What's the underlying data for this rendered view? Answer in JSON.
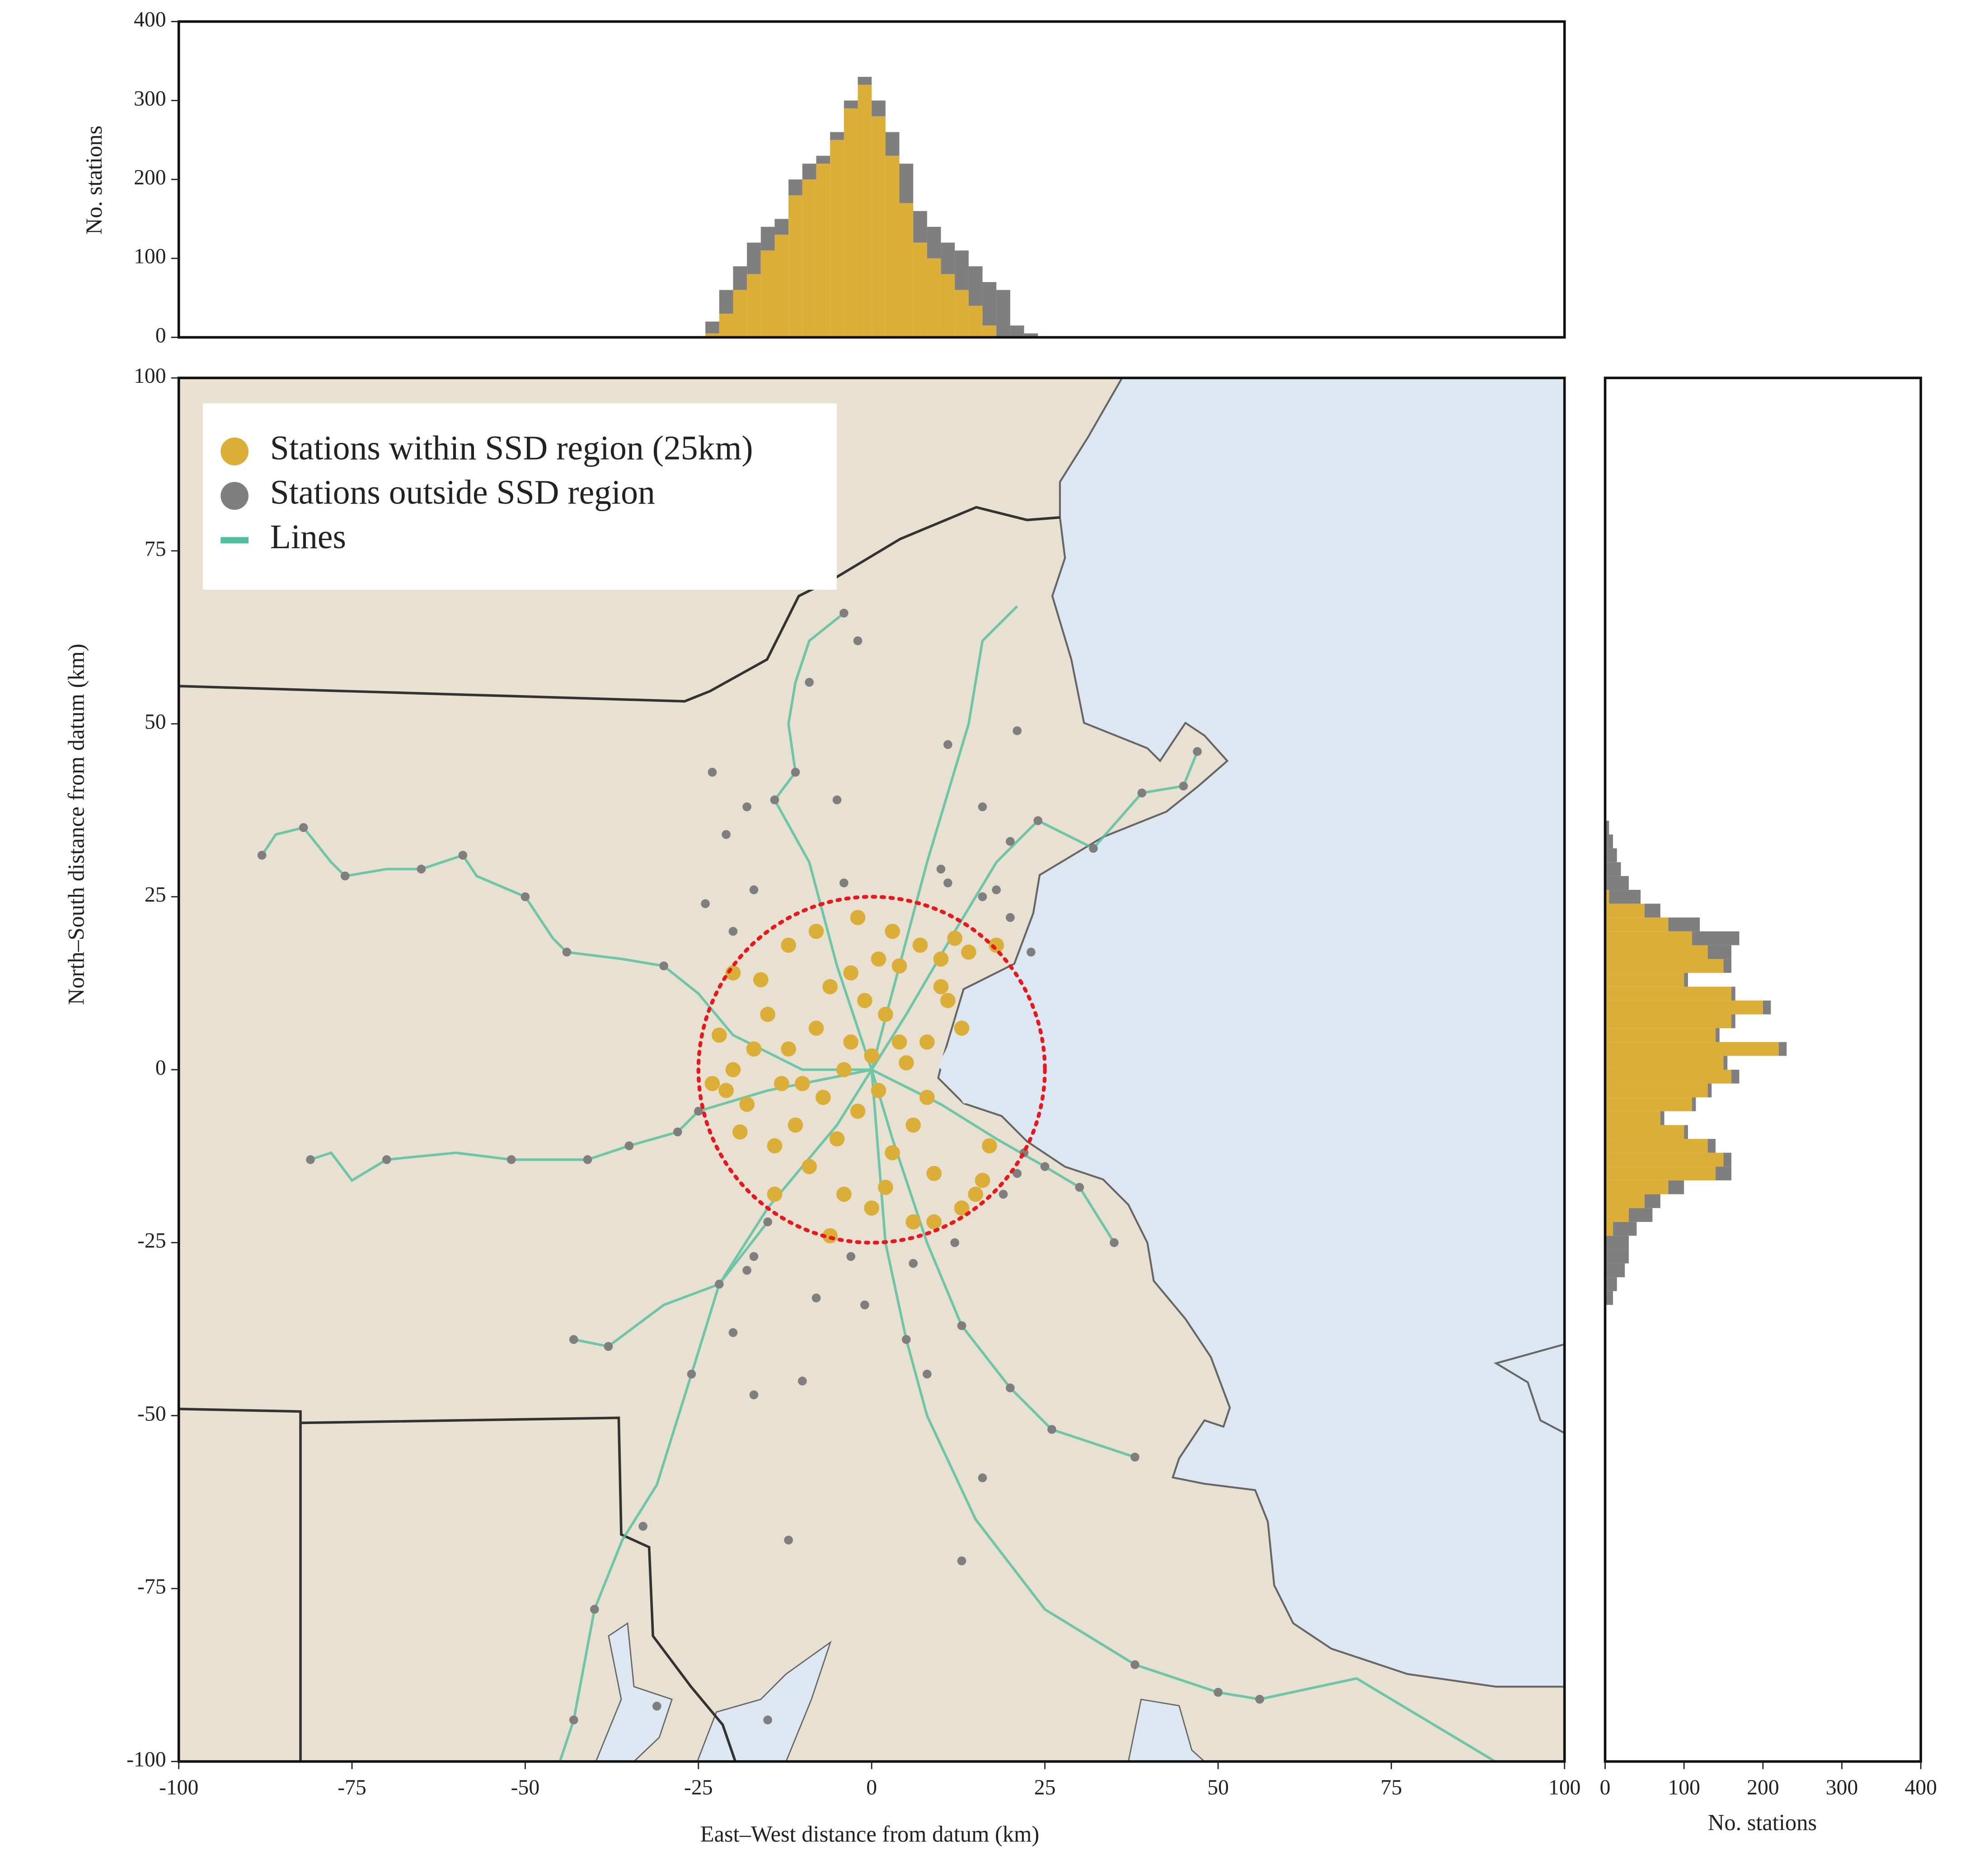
{
  "chart_data": [
    {
      "type": "scatter",
      "xlabel": "East–West distance from datum (km)",
      "ylabel": "North–South distance from datum (km)",
      "xlim": [
        -100,
        100
      ],
      "ylim": [
        -100,
        100
      ],
      "xticks": [
        -100,
        -75,
        -50,
        -25,
        0,
        25,
        50,
        75,
        100
      ],
      "yticks": [
        -100,
        -75,
        -50,
        -25,
        0,
        25,
        50,
        75,
        100
      ],
      "legend": "upper left",
      "circle_radius": 25,
      "circle_color": "#e8191c",
      "series": [
        {
          "name": "Stations within SSD region (25km)",
          "color": "#dbae38",
          "x": [
            -22,
            -20,
            -18,
            -15,
            -12,
            -10,
            -8,
            -6,
            -5,
            -3,
            -2,
            0,
            1,
            2,
            3,
            4,
            5,
            6,
            7,
            8,
            9,
            10,
            12,
            14,
            15,
            16,
            13,
            6,
            0,
            -4,
            -9,
            -14,
            -19,
            -21,
            -16,
            -12,
            -20,
            -8,
            -2,
            3,
            11,
            13,
            8,
            -1,
            -7,
            -11,
            -4,
            2,
            9,
            -14,
            -17,
            -23,
            18,
            10,
            -6,
            17,
            4,
            -3,
            -13,
            1
          ],
          "y": [
            5,
            0,
            -5,
            8,
            3,
            -2,
            6,
            12,
            -10,
            4,
            -6,
            2,
            -3,
            8,
            -12,
            15,
            1,
            -8,
            18,
            4,
            -15,
            12,
            19,
            17,
            -18,
            -16,
            -20,
            -22,
            -20,
            -18,
            -14,
            -11,
            -9,
            -3,
            13,
            18,
            14,
            20,
            22,
            20,
            10,
            6,
            -4,
            10,
            -4,
            -8,
            0,
            -17,
            -22,
            -18,
            3,
            -2,
            18,
            16,
            -24,
            -11,
            4,
            14,
            -2,
            16
          ]
        },
        {
          "name": "Stations outside SSD region",
          "color": "#7f7f7f",
          "x": [
            -88,
            -82,
            -76,
            -65,
            -59,
            -50,
            -44,
            -30,
            -81,
            -70,
            -52,
            -41,
            -35,
            -28,
            -25,
            -43,
            -38,
            -18,
            -22,
            -20,
            -26,
            -17,
            -10,
            -8,
            -1,
            5,
            8,
            13,
            20,
            26,
            38,
            16,
            13,
            -12,
            -33,
            -40,
            -43,
            -31,
            -15,
            38,
            50,
            56,
            -4,
            -2,
            -9,
            -11,
            -14,
            -18,
            -23,
            -21,
            -5,
            11,
            21,
            16,
            24,
            32,
            39,
            45,
            47,
            20,
            10,
            18,
            -24,
            -20,
            -17,
            -4,
            11,
            16,
            20,
            23,
            22,
            21,
            25,
            30,
            35,
            19,
            -15,
            -17,
            -3,
            6,
            12
          ],
          "y": [
            31,
            35,
            28,
            29,
            31,
            25,
            17,
            15,
            -13,
            -13,
            -13,
            -13,
            -11,
            -9,
            -6,
            -39,
            -40,
            -29,
            -31,
            -38,
            -44,
            -47,
            -45,
            -33,
            -34,
            -39,
            -44,
            -37,
            -46,
            -52,
            -56,
            -59,
            -71,
            -68,
            -66,
            -78,
            -94,
            -92,
            -94,
            -86,
            -90,
            -91,
            66,
            62,
            56,
            43,
            39,
            38,
            43,
            34,
            39,
            47,
            49,
            38,
            36,
            32,
            40,
            41,
            46,
            33,
            29,
            26,
            24,
            20,
            26,
            27,
            27,
            25,
            22,
            17,
            -12,
            -15,
            -14,
            -17,
            -25,
            -18,
            -22,
            -27,
            -27,
            -28,
            -25
          ]
        },
        {
          "name": "Lines",
          "color": "#4fbf9f",
          "mode": "line",
          "x": [
            -88,
            -86,
            -82,
            -78,
            -76,
            -70,
            -65,
            -59,
            -57,
            -50,
            -46,
            -44,
            -36,
            -30,
            -25,
            -20,
            -10,
            0,
            null,
            -81,
            -78,
            -75,
            -70,
            -60,
            -52,
            -45,
            -41,
            -35,
            -28,
            -25,
            -15,
            0,
            null,
            -43,
            -38,
            -30,
            -22,
            -15,
            -5,
            0,
            null,
            -45,
            -43,
            -40,
            -36,
            -31,
            -26,
            -22,
            -15,
            null,
            -4,
            -9,
            -11,
            -12,
            -11,
            -14,
            -9,
            -5,
            0,
            null,
            21,
            16,
            14,
            11,
            8,
            4,
            0,
            null,
            47,
            45,
            39,
            32,
            24,
            18,
            12,
            5,
            0,
            null,
            90,
            70,
            56,
            50,
            38,
            25,
            15,
            8,
            5,
            2,
            0,
            null,
            38,
            26,
            20,
            13,
            8,
            3,
            0,
            null,
            35,
            30,
            25,
            18,
            10,
            0
          ],
          "y": [
            31,
            34,
            35,
            30,
            28,
            29,
            29,
            31,
            28,
            25,
            19,
            17,
            16,
            15,
            11,
            5,
            0,
            0,
            null,
            -13,
            -12,
            -16,
            -13,
            -12,
            -13,
            -13,
            -13,
            -11,
            -9,
            -6,
            -3,
            0,
            null,
            -39,
            -40,
            -34,
            -31,
            -20,
            -8,
            0,
            null,
            -100,
            -94,
            -78,
            -68,
            -60,
            -44,
            -31,
            -22,
            null,
            66,
            62,
            56,
            50,
            43,
            39,
            30,
            15,
            0,
            null,
            67,
            62,
            50,
            40,
            30,
            15,
            0,
            null,
            46,
            41,
            40,
            32,
            36,
            30,
            20,
            8,
            0,
            null,
            -100,
            -88,
            -91,
            -90,
            -86,
            -78,
            -65,
            -50,
            -39,
            -25,
            0,
            null,
            -56,
            -52,
            -46,
            -37,
            -25,
            -10,
            0,
            null,
            -25,
            -17,
            -14,
            -10,
            -5,
            0
          ]
        }
      ]
    },
    {
      "type": "histogram",
      "ylabel": "No. stations",
      "xlim": [
        -100,
        100
      ],
      "ylim": [
        0,
        400
      ],
      "yticks": [
        0,
        100,
        200,
        300,
        400
      ],
      "bins": [
        -24,
        -22,
        -20,
        -18,
        -16,
        -14,
        -12,
        -10,
        -8,
        -6,
        -4,
        -2,
        0,
        2,
        4,
        6,
        8,
        10,
        12,
        14,
        16,
        18,
        20,
        22,
        24
      ],
      "series": [
        {
          "color": "#dbae38",
          "values": [
            5,
            30,
            60,
            80,
            110,
            130,
            180,
            200,
            220,
            250,
            290,
            320,
            280,
            230,
            170,
            120,
            100,
            80,
            60,
            40,
            15,
            0,
            0,
            0
          ]
        },
        {
          "color": "#7f7f7f",
          "values": [
            15,
            30,
            30,
            40,
            30,
            20,
            20,
            20,
            10,
            10,
            10,
            10,
            20,
            30,
            50,
            40,
            40,
            40,
            50,
            50,
            55,
            60,
            15,
            5
          ]
        }
      ]
    },
    {
      "type": "histogram",
      "orientation": "horizontal",
      "xlabel": "No. stations",
      "xlim": [
        0,
        400
      ],
      "ylim": [
        -100,
        100
      ],
      "xticks": [
        0,
        100,
        200,
        300,
        400
      ],
      "bins": [
        -34,
        -32,
        -30,
        -28,
        -26,
        -24,
        -22,
        -20,
        -18,
        -16,
        -14,
        -12,
        -10,
        -8,
        -6,
        -4,
        -2,
        0,
        2,
        4,
        6,
        8,
        10,
        12,
        14,
        16,
        18,
        20,
        22,
        24,
        26,
        28,
        30,
        32,
        34,
        36
      ],
      "series": [
        {
          "color": "#dbae38",
          "values": [
            0,
            0,
            0,
            0,
            0,
            10,
            30,
            50,
            80,
            140,
            150,
            130,
            100,
            70,
            110,
            130,
            160,
            150,
            220,
            140,
            160,
            200,
            160,
            100,
            150,
            130,
            110,
            80,
            50,
            5,
            0,
            0,
            0,
            0,
            0
          ]
        },
        {
          "color": "#7f7f7f",
          "values": [
            10,
            15,
            25,
            30,
            30,
            30,
            30,
            20,
            20,
            20,
            10,
            10,
            5,
            5,
            5,
            5,
            10,
            5,
            10,
            5,
            5,
            10,
            5,
            5,
            10,
            30,
            60,
            40,
            20,
            40,
            30,
            20,
            15,
            10,
            5
          ]
        }
      ]
    }
  ]
}
